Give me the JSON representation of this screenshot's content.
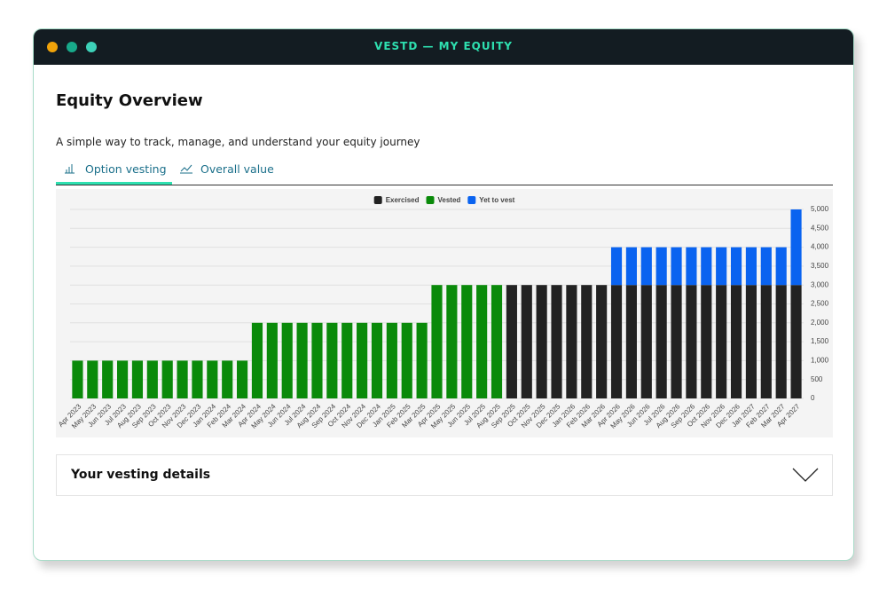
{
  "window": {
    "title": "VESTD — MY EQUITY"
  },
  "header": {
    "title": "Equity Overview",
    "subtitle": "A simple way to track, manage, and understand your equity journey"
  },
  "tabs": [
    "Option vesting",
    "Overall value"
  ],
  "chart_data": {
    "type": "stacked_bar",
    "categories": [
      "Apr 2023",
      "May 2023",
      "Jun 2023",
      "Jul 2023",
      "Aug 2023",
      "Sep 2023",
      "Oct 2023",
      "Nov 2023",
      "Dec 2023",
      "Jan 2024",
      "Feb 2024",
      "Mar 2024",
      "Apr 2024",
      "May 2024",
      "Jun 2024",
      "Jul 2024",
      "Aug 2024",
      "Sep 2024",
      "Oct 2024",
      "Nov 2024",
      "Dec 2024",
      "Jan 2025",
      "Feb 2025",
      "Mar 2025",
      "Apr 2025",
      "May 2025",
      "Jun 2025",
      "Jul 2025",
      "Aug 2025",
      "Sep 2025",
      "Oct 2025",
      "Nov 2025",
      "Dec 2025",
      "Jan 2026",
      "Feb 2026",
      "Mar 2026",
      "Apr 2026",
      "May 2026",
      "Jun 2026",
      "Jul 2026",
      "Aug 2026",
      "Sep 2026",
      "Oct 2026",
      "Nov 2026",
      "Dec 2026",
      "Jan 2027",
      "Feb 2027",
      "Mar 2027",
      "Apr 2027"
    ],
    "series": [
      {
        "name": "Exercised",
        "color": "#222222",
        "values": [
          0,
          0,
          0,
          0,
          0,
          0,
          0,
          0,
          0,
          0,
          0,
          0,
          0,
          0,
          0,
          0,
          0,
          0,
          0,
          0,
          0,
          0,
          0,
          0,
          0,
          0,
          0,
          0,
          0,
          3000,
          3000,
          3000,
          3000,
          3000,
          3000,
          3000,
          3000,
          3000,
          3000,
          3000,
          3000,
          3000,
          3000,
          3000,
          3000,
          3000,
          3000,
          3000,
          3000
        ]
      },
      {
        "name": "Vested",
        "color": "#0a8a0a",
        "values": [
          1000,
          1000,
          1000,
          1000,
          1000,
          1000,
          1000,
          1000,
          1000,
          1000,
          1000,
          1000,
          2000,
          2000,
          2000,
          2000,
          2000,
          2000,
          2000,
          2000,
          2000,
          2000,
          2000,
          2000,
          3000,
          3000,
          3000,
          3000,
          3000,
          0,
          0,
          0,
          0,
          0,
          0,
          0,
          0,
          0,
          0,
          0,
          0,
          0,
          0,
          0,
          0,
          0,
          0,
          0,
          0
        ]
      },
      {
        "name": "Yet to vest",
        "color": "#0a63f0",
        "values": [
          0,
          0,
          0,
          0,
          0,
          0,
          0,
          0,
          0,
          0,
          0,
          0,
          0,
          0,
          0,
          0,
          0,
          0,
          0,
          0,
          0,
          0,
          0,
          0,
          0,
          0,
          0,
          0,
          0,
          0,
          0,
          0,
          0,
          0,
          0,
          0,
          1000,
          1000,
          1000,
          1000,
          1000,
          1000,
          1000,
          1000,
          1000,
          1000,
          1000,
          1000,
          2000
        ]
      }
    ],
    "ylim": [
      0,
      5000
    ],
    "yticks": [
      0,
      500,
      {
        "value": 1000,
        "label": "1,000"
      },
      {
        "value": 1500,
        "label": "1,500"
      },
      {
        "value": 2000,
        "label": "2,000"
      },
      {
        "value": 2500,
        "label": "2,500"
      },
      {
        "value": 3000,
        "label": "3,000"
      },
      {
        "value": 3500,
        "label": "3,500"
      },
      {
        "value": 4000,
        "label": "4,000"
      },
      {
        "value": 4500,
        "label": "4,500"
      },
      {
        "value": 5000,
        "label": "5,000"
      }
    ],
    "grid": true,
    "legend": "top"
  },
  "details": {
    "title": "Your vesting details"
  }
}
